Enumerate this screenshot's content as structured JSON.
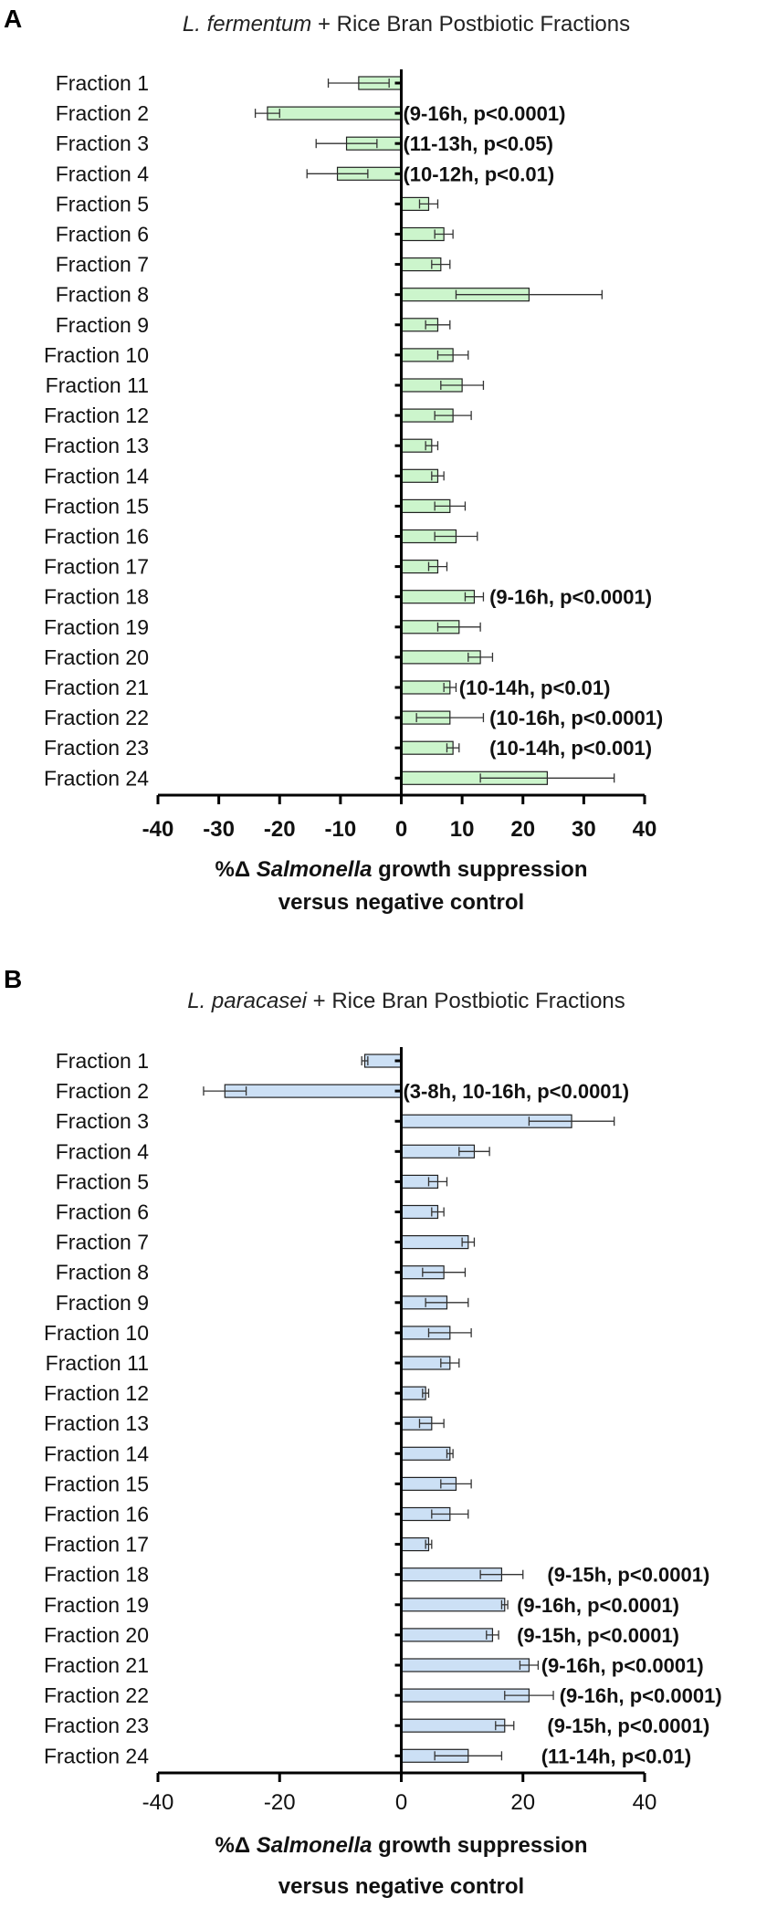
{
  "chart_data": [
    {
      "panel": "A",
      "type": "bar",
      "orientation": "horizontal",
      "bar_color": "#ccf5cc",
      "title": {
        "italic": "L. fermentum",
        "rest": " + Rice Bran Postbiotic Fractions"
      },
      "xlabel": {
        "prefix": "%Δ ",
        "italic": "Salmonella",
        "rest": " growth suppression",
        "line2": "versus negative control"
      },
      "xlim": [
        -40,
        40
      ],
      "xticks": [
        -40,
        -30,
        -20,
        -10,
        0,
        10,
        20,
        30,
        40
      ],
      "categories": [
        "Fraction 1",
        "Fraction 2",
        "Fraction 3",
        "Fraction 4",
        "Fraction 5",
        "Fraction 6",
        "Fraction 7",
        "Fraction 8",
        "Fraction 9",
        "Fraction 10",
        "Fraction 11",
        "Fraction 12",
        "Fraction 13",
        "Fraction 14",
        "Fraction 15",
        "Fraction 16",
        "Fraction 17",
        "Fraction 18",
        "Fraction 19",
        "Fraction 20",
        "Fraction 21",
        "Fraction 22",
        "Fraction 23",
        "Fraction 24"
      ],
      "values": [
        -7,
        -22,
        -9,
        -10.5,
        4.5,
        7,
        6.5,
        21,
        6,
        8.5,
        10,
        8.5,
        5,
        6,
        8,
        9,
        6,
        12,
        9.5,
        13,
        8,
        8,
        8.5,
        24
      ],
      "errors": [
        5,
        2,
        5,
        5,
        1.5,
        1.5,
        1.5,
        12,
        2,
        2.5,
        3.5,
        3,
        1,
        1,
        2.5,
        3.5,
        1.5,
        1.5,
        3.5,
        2,
        1,
        5.5,
        1,
        11
      ],
      "annotations": [
        {
          "index": 1,
          "text": "(9-16h, p<0.0001)",
          "x": 0.3
        },
        {
          "index": 2,
          "text": "(11-13h, p<0.05)",
          "x": 0.3
        },
        {
          "index": 3,
          "text": "(10-12h, p<0.01)",
          "x": 0.3
        },
        {
          "index": 17,
          "text": "(9-16h, p<0.0001)",
          "x": 14.5
        },
        {
          "index": 20,
          "text": "(10-14h, p<0.01)",
          "x": 9.5
        },
        {
          "index": 21,
          "text": "(10-16h, p<0.0001)",
          "x": 14.5
        },
        {
          "index": 22,
          "text": "(10-14h, p<0.001)",
          "x": 14.5
        }
      ]
    },
    {
      "panel": "B",
      "type": "bar",
      "orientation": "horizontal",
      "bar_color": "#cce0f5",
      "title": {
        "italic": "L. paracasei",
        "rest": " + Rice Bran Postbiotic Fractions"
      },
      "xlabel": {
        "prefix": "%Δ ",
        "italic": "Salmonella",
        "rest": " growth suppression",
        "line2": "versus negative control"
      },
      "xlim": [
        -40,
        40
      ],
      "xticks": [
        -40,
        -20,
        0,
        20,
        40
      ],
      "categories": [
        "Fraction 1",
        "Fraction 2",
        "Fraction 3",
        "Fraction 4",
        "Fraction 5",
        "Fraction 6",
        "Fraction 7",
        "Fraction 8",
        "Fraction 9",
        "Fraction 10",
        "Fraction 11",
        "Fraction 12",
        "Fraction 13",
        "Fraction 14",
        "Fraction 15",
        "Fraction 16",
        "Fraction 17",
        "Fraction 18",
        "Fraction 19",
        "Fraction 20",
        "Fraction 21",
        "Fraction 22",
        "Fraction 23",
        "Fraction 24"
      ],
      "values": [
        -6,
        -29,
        28,
        12,
        6,
        6,
        11,
        7,
        7.5,
        8,
        8,
        4,
        5,
        8,
        9,
        8,
        4.5,
        16.5,
        17,
        15,
        21,
        21,
        17,
        11
      ],
      "errors": [
        0.5,
        3.5,
        7,
        2.5,
        1.5,
        1,
        1,
        3.5,
        3.5,
        3.5,
        1.5,
        0.5,
        2,
        0.5,
        2.5,
        3,
        0.5,
        3.5,
        0.5,
        1,
        1.5,
        4,
        1.5,
        5.5
      ],
      "annotations": [
        {
          "index": 1,
          "text": "(3-8h, 10-16h, p<0.0001)",
          "x": 0.3
        },
        {
          "index": 17,
          "text": "(9-15h, p<0.0001)",
          "x": 24
        },
        {
          "index": 18,
          "text": "(9-16h, p<0.0001)",
          "x": 19
        },
        {
          "index": 19,
          "text": "(9-15h, p<0.0001)",
          "x": 19
        },
        {
          "index": 20,
          "text": "(9-16h, p<0.0001)",
          "x": 23
        },
        {
          "index": 21,
          "text": "(9-16h, p<0.0001)",
          "x": 26
        },
        {
          "index": 22,
          "text": "(9-15h, p<0.0001)",
          "x": 24
        },
        {
          "index": 23,
          "text": "(11-14h, p<0.01)",
          "x": 23
        }
      ]
    }
  ]
}
